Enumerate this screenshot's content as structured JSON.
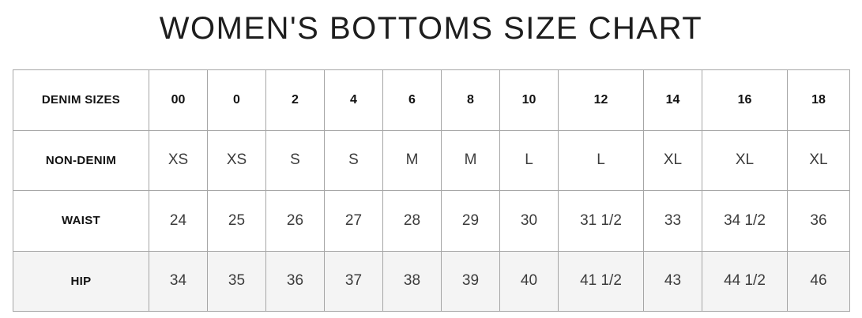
{
  "title": "WOMEN'S BOTTOMS SIZE CHART",
  "colors": {
    "page_bg": "#ffffff",
    "border": "#a6a6a6",
    "label_text": "#111111",
    "value_text": "#3c3c3c",
    "shaded_row_bg": "#f4f4f4"
  },
  "chart_data": {
    "type": "table",
    "title": "WOMEN'S BOTTOMS SIZE CHART",
    "grid": "on",
    "rows": [
      {
        "label": "DENIM SIZES",
        "is_header": true,
        "shaded": false,
        "values": [
          "00",
          "0",
          "2",
          "4",
          "6",
          "8",
          "10",
          "12",
          "14",
          "16",
          "18"
        ]
      },
      {
        "label": "NON-DENIM",
        "is_header": false,
        "shaded": false,
        "values": [
          "XS",
          "XS",
          "S",
          "S",
          "M",
          "M",
          "L",
          "L",
          "XL",
          "XL",
          "XL"
        ]
      },
      {
        "label": "WAIST",
        "is_header": false,
        "shaded": false,
        "values": [
          "24",
          "25",
          "26",
          "27",
          "28",
          "29",
          "30",
          "31 1/2",
          "33",
          "34 1/2",
          "36"
        ]
      },
      {
        "label": "HIP",
        "is_header": false,
        "shaded": true,
        "values": [
          "34",
          "35",
          "36",
          "37",
          "38",
          "39",
          "40",
          "41 1/2",
          "43",
          "44 1/2",
          "46"
        ]
      }
    ]
  }
}
